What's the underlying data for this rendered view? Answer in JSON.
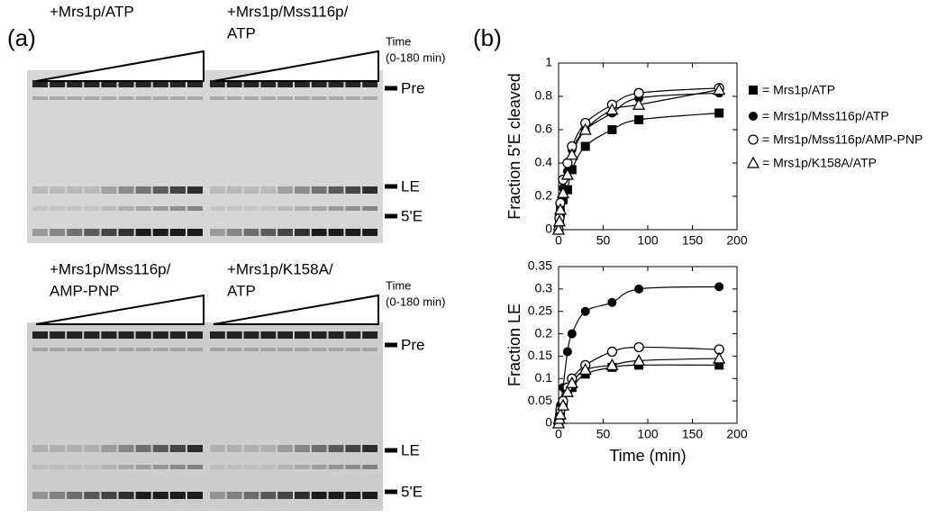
{
  "panel_labels": [
    "(a)",
    "(b)"
  ],
  "gels": [
    {
      "labels": [
        [
          "+Mrs1p/ATP"
        ],
        [
          "+Mrs1p/Mss116p/",
          "ATP"
        ]
      ],
      "time": [
        "Time",
        "(0-180 min)"
      ],
      "bands": [
        "Pre",
        "LE",
        "5'E"
      ]
    },
    {
      "labels": [
        [
          "+Mrs1p/Mss116p/",
          "AMP-PNP"
        ],
        [
          "+Mrs1p/K158A/",
          "ATP"
        ]
      ],
      "time": [
        "Time",
        "(0-180 min)"
      ],
      "bands": [
        "Pre",
        "LE",
        "5'E"
      ]
    }
  ],
  "chart_data": [
    {
      "type": "scatter",
      "ylabel": "Fraction 5'E cleaved",
      "x": [
        0,
        1,
        2,
        5,
        10,
        15,
        30,
        60,
        90,
        180
      ],
      "xlim": [
        0,
        200
      ],
      "xticks": [
        0,
        50,
        100,
        150,
        200
      ],
      "ylim": [
        0,
        1
      ],
      "yticks": [
        0,
        0.2,
        0.4,
        0.6,
        0.8,
        1
      ],
      "series": [
        {
          "name": "= Mrs1p/ATP",
          "marker": "square",
          "color": "#000000",
          "values": [
            0,
            0.05,
            0.1,
            0.18,
            0.24,
            0.36,
            0.5,
            0.6,
            0.66,
            0.7
          ]
        },
        {
          "name": "= Mrs1p/Mss116p/ATP",
          "marker": "circle",
          "color": "#000000",
          "values": [
            0,
            0.06,
            0.14,
            0.25,
            0.35,
            0.48,
            0.6,
            0.7,
            0.79,
            0.82
          ]
        },
        {
          "name": "= Mrs1p/Mss116p/AMP-PNP",
          "marker": "open-circle",
          "color": "#000000",
          "values": [
            0,
            0.07,
            0.16,
            0.3,
            0.4,
            0.5,
            0.64,
            0.75,
            0.82,
            0.85
          ]
        },
        {
          "name": "= Mrs1p/K158A/ATP",
          "marker": "open-triangle",
          "color": "#000000",
          "values": [
            0,
            0.05,
            0.12,
            0.22,
            0.33,
            0.45,
            0.6,
            0.72,
            0.75,
            0.84
          ]
        }
      ]
    },
    {
      "type": "scatter",
      "ylabel": "Fraction LE",
      "xlabel": "Time (min)",
      "x": [
        0,
        1,
        2,
        5,
        10,
        15,
        30,
        60,
        90,
        180
      ],
      "xlim": [
        0,
        200
      ],
      "xticks": [
        0,
        50,
        100,
        150,
        200
      ],
      "ylim": [
        0,
        0.35
      ],
      "yticks": [
        0,
        0.05,
        0.1,
        0.15,
        0.2,
        0.25,
        0.3,
        0.35
      ],
      "series": [
        {
          "marker": "square",
          "color": "#000000",
          "values": [
            0,
            0.01,
            0.02,
            0.04,
            0.07,
            0.08,
            0.11,
            0.125,
            0.13,
            0.13
          ]
        },
        {
          "marker": "circle",
          "color": "#000000",
          "values": [
            0,
            0.02,
            0.04,
            0.08,
            0.16,
            0.2,
            0.25,
            0.27,
            0.3,
            0.305
          ]
        },
        {
          "marker": "open-circle",
          "color": "#000000",
          "values": [
            0,
            0.01,
            0.03,
            0.05,
            0.08,
            0.1,
            0.13,
            0.16,
            0.17,
            0.165
          ]
        },
        {
          "marker": "open-triangle",
          "color": "#000000",
          "values": [
            0,
            0.01,
            0.02,
            0.04,
            0.07,
            0.09,
            0.12,
            0.13,
            0.14,
            0.145
          ]
        }
      ]
    }
  ]
}
